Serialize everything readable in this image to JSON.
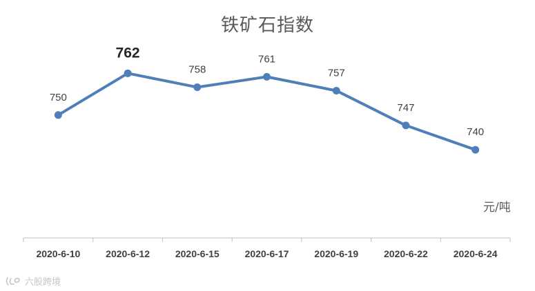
{
  "chart_data": {
    "type": "line",
    "title": "铁矿石指数",
    "categories": [
      "2020-6-10",
      "2020-6-12",
      "2020-6-15",
      "2020-6-17",
      "2020-6-19",
      "2020-6-22",
      "2020-6-24"
    ],
    "series": [
      {
        "values": [
          750,
          762,
          758,
          761,
          757,
          747,
          740
        ],
        "color": "#4f7fb8"
      }
    ],
    "unit": "元/吨",
    "ylim": [
      720,
      770
    ],
    "highlighted_point": 1,
    "grid": false,
    "legend": "none"
  },
  "watermark": {
    "text": "六股跨境",
    "icon": "brand-logo-icon"
  }
}
